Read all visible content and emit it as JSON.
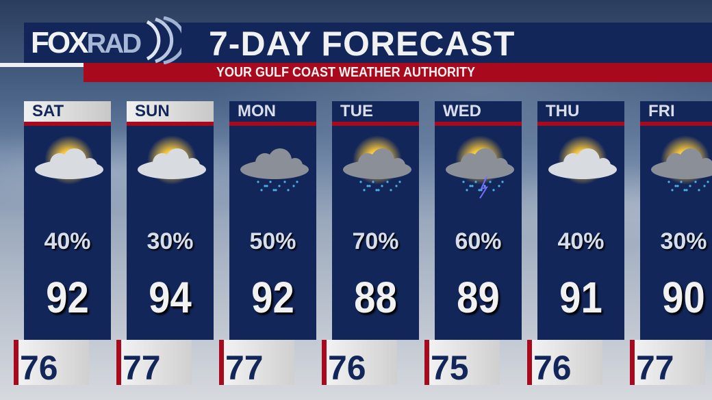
{
  "header": {
    "logo": "FOXRAD",
    "title": "7-DAY FORECAST",
    "subtitle": "YOUR GULF COAST WEATHER AUTHORITY"
  },
  "colors": {
    "navy": "#13265a",
    "red": "#a8091c"
  },
  "days": [
    {
      "day": "SAT",
      "icon": "partly-sunny-icon",
      "precip": "40%",
      "high": "92",
      "low": "76",
      "highlight": true
    },
    {
      "day": "SUN",
      "icon": "partly-sunny-icon",
      "precip": "30%",
      "high": "94",
      "low": "77",
      "highlight": true
    },
    {
      "day": "MON",
      "icon": "rain-cloud-icon",
      "precip": "50%",
      "high": "92",
      "low": "77",
      "highlight": false
    },
    {
      "day": "TUE",
      "icon": "sun-cloud-rain-icon",
      "precip": "70%",
      "high": "88",
      "low": "76",
      "highlight": false
    },
    {
      "day": "WED",
      "icon": "thunderstorm-icon",
      "precip": "60%",
      "high": "89",
      "low": "75",
      "highlight": false
    },
    {
      "day": "THU",
      "icon": "partly-sunny-icon",
      "precip": "40%",
      "high": "91",
      "low": "76",
      "highlight": false
    },
    {
      "day": "FRI",
      "icon": "sun-cloud-rain-icon",
      "precip": "30%",
      "high": "90",
      "low": "77",
      "highlight": false
    }
  ]
}
